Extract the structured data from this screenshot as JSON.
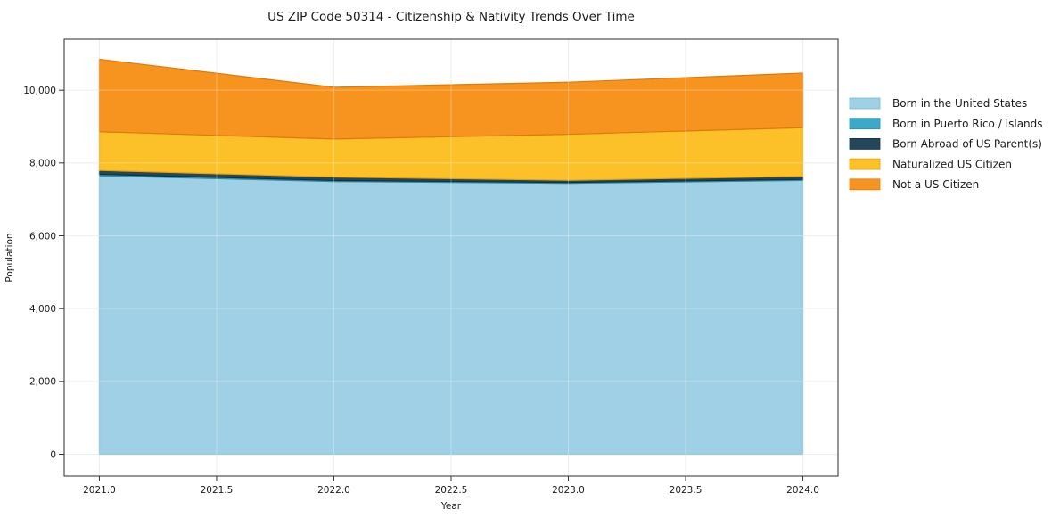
{
  "chart_data": {
    "type": "area",
    "stacked": true,
    "title": "US ZIP Code 50314 - Citizenship & Nativity Trends Over Time",
    "xlabel": "Year",
    "ylabel": "Population",
    "x": [
      2021,
      2022,
      2023,
      2024
    ],
    "series": [
      {
        "name": "Born in the United States",
        "values": [
          7650,
          7490,
          7440,
          7520
        ],
        "fill": "#a0d0e5",
        "edge": "#79b6d2"
      },
      {
        "name": "Born in Puerto Rico / Islands",
        "values": [
          40,
          30,
          25,
          30
        ],
        "fill": "#3ea9c6",
        "edge": "#2b8dab"
      },
      {
        "name": "Born Abroad of US Parent(s)",
        "values": [
          105,
          95,
          60,
          85
        ],
        "fill": "#24465a",
        "edge": "#16303f"
      },
      {
        "name": "Naturalized US Citizen",
        "values": [
          1065,
          1045,
          1265,
          1335
        ],
        "fill": "#fcc128",
        "edge": "#dfa410"
      },
      {
        "name": "Not a US Citizen",
        "values": [
          1990,
          1420,
          1430,
          1500
        ],
        "fill": "#f7941f",
        "edge": "#dd7a0e"
      }
    ],
    "totals": [
      10850,
      10080,
      10220,
      10470
    ],
    "xticks": {
      "values": [
        2021,
        2021.5,
        2022,
        2022.5,
        2023,
        2023.5,
        2024
      ],
      "labels": [
        "2021.0",
        "2021.5",
        "2022.0",
        "2022.5",
        "2023.0",
        "2023.5",
        "2024.0"
      ]
    },
    "yticks": {
      "values": [
        0,
        2000,
        4000,
        6000,
        8000,
        10000
      ],
      "labels": [
        "0",
        "2,000",
        "4,000",
        "6,000",
        "8,000",
        "10,000"
      ]
    },
    "xlim": [
      2020.85,
      2024.15
    ],
    "ylim": [
      -600,
      11400
    ],
    "grid": true,
    "legend_position": "right-outside",
    "style": {
      "background": "#ffffff",
      "plot_background": "#ffffff",
      "grid_color": "#e7e7e7",
      "spine_color": "#2b2b2b",
      "tick_color": "#333333",
      "text_color": "#1a1a1a"
    }
  }
}
